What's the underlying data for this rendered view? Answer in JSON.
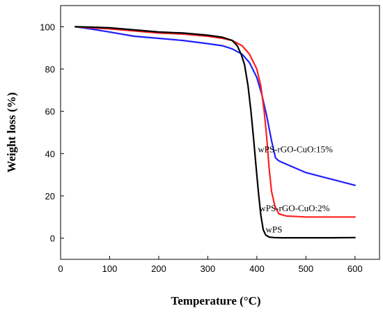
{
  "chart_data": {
    "type": "line",
    "xlabel": "Temperature (°C)",
    "ylabel": "Weight loss (%)",
    "xlim": [
      0,
      650
    ],
    "ylim": [
      -10,
      110
    ],
    "xticks": [
      0,
      100,
      200,
      300,
      400,
      500,
      600
    ],
    "yticks": [
      0,
      20,
      40,
      60,
      80,
      100
    ],
    "grid": false,
    "legend": "inline labels",
    "series": [
      {
        "name": "wPS-rGO-CuO:15%",
        "color": "#1f1fff",
        "label_anchor": [
          402,
          42
        ],
        "x": [
          30,
          60,
          100,
          150,
          200,
          250,
          300,
          330,
          350,
          370,
          385,
          400,
          410,
          420,
          430,
          438,
          445,
          460,
          500,
          550,
          600
        ],
        "y": [
          100,
          99,
          97.5,
          95.5,
          94.5,
          93.5,
          92,
          91,
          89.5,
          87,
          83,
          76,
          68,
          58,
          46,
          38,
          36.5,
          35,
          31,
          28,
          25
        ]
      },
      {
        "name": "wPS-rGO-CuO:2%",
        "color": "#ff1f1f",
        "label_anchor": [
          405,
          14
        ],
        "x": [
          30,
          60,
          100,
          150,
          200,
          250,
          300,
          330,
          350,
          370,
          385,
          400,
          408,
          415,
          420,
          425,
          430,
          437,
          445,
          460,
          500,
          550,
          600
        ],
        "y": [
          100,
          99.5,
          99,
          98,
          97,
          96.5,
          95.5,
          94.5,
          93.5,
          91,
          87,
          80,
          72,
          60,
          48,
          33,
          22,
          15,
          11.5,
          10.5,
          10,
          10,
          10
        ]
      },
      {
        "name": "wPS",
        "color": "#000000",
        "label_anchor": [
          418,
          4
        ],
        "x": [
          30,
          60,
          100,
          150,
          200,
          250,
          300,
          330,
          350,
          360,
          368,
          375,
          382,
          388,
          393,
          398,
          403,
          408,
          413,
          418,
          425,
          435,
          450,
          500,
          550,
          600
        ],
        "y": [
          100,
          99.8,
          99.5,
          98.5,
          97.5,
          97,
          96,
          95,
          93.5,
          91,
          87,
          82,
          72,
          60,
          48,
          35,
          22,
          11,
          4,
          1.5,
          0.5,
          0.3,
          0.2,
          0.2,
          0.2,
          0.3
        ]
      }
    ]
  }
}
